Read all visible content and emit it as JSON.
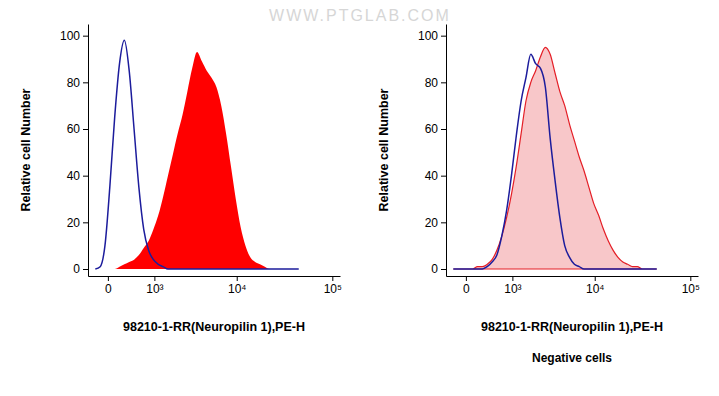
{
  "watermark": "WWW.PTGLAB.COM",
  "chart_data": [
    {
      "type": "area",
      "log": "x",
      "x_label": "98210-1-RR(Neuropilin 1),PE-H",
      "y_label": "Relative cell Number",
      "xlim": [
        -300,
        120000
      ],
      "ylim": [
        -3,
        105
      ],
      "xticks": [
        0,
        {
          "value": 1000,
          "label": "10³"
        },
        {
          "value": 10000,
          "label": "10⁴"
        },
        {
          "value": 100000,
          "label": "10⁵"
        }
      ],
      "yticks": [
        0,
        20,
        40,
        60,
        80,
        100
      ],
      "x": [
        -173,
        -100,
        -36,
        23,
        87,
        158,
        238,
        327,
        428,
        540,
        666,
        808,
        967,
        1144,
        1344,
        1567,
        1818,
        2099,
        2414,
        2768,
        3164,
        3609,
        4107,
        4666,
        5292,
        5994,
        6783,
        7666,
        8656,
        9766,
        11011,
        12405,
        13970,
        15730,
        17690,
        19900,
        22380,
        25145,
        28250,
        31740,
        35660,
        40050,
        44960
      ],
      "series": [
        {
          "type": "area",
          "color": "#ff0000",
          "values": [
            0,
            0,
            0,
            0,
            0,
            1,
            2,
            3,
            4,
            6,
            9,
            12,
            17,
            23,
            31,
            40,
            49,
            58,
            66,
            76,
            86,
            93,
            89,
            85,
            82,
            78,
            70,
            58,
            44,
            30,
            18,
            10,
            5,
            3,
            2,
            1,
            0,
            0,
            0,
            0,
            0,
            0,
            0
          ]
        },
        {
          "type": "line",
          "color": "#1c1c9c",
          "values": [
            0,
            1,
            10,
            35,
            65,
            88,
            98,
            85,
            60,
            35,
            17,
            8,
            4,
            2,
            1,
            0,
            0,
            0,
            0,
            0,
            0,
            0,
            0,
            0,
            0,
            0,
            0,
            0,
            0,
            0,
            0,
            0,
            0,
            0,
            0,
            0,
            0,
            0,
            0,
            0,
            0,
            0,
            0
          ]
        }
      ]
    },
    {
      "type": "area",
      "log": "x",
      "x_label": "98210-1-RR(Neuropilin 1),PE-H",
      "y_label": "Relative cell Number",
      "caption": "Negative cells",
      "xlim": [
        -300,
        120000
      ],
      "ylim": [
        -3,
        105
      ],
      "xticks": [
        0,
        {
          "value": 1000,
          "label": "10³"
        },
        {
          "value": 10000,
          "label": "10⁴"
        },
        {
          "value": 100000,
          "label": "10⁵"
        }
      ],
      "yticks": [
        0,
        20,
        40,
        60,
        80,
        100
      ],
      "x": [
        -173,
        -100,
        -36,
        23,
        87,
        158,
        238,
        327,
        428,
        540,
        666,
        808,
        967,
        1144,
        1344,
        1567,
        1818,
        2099,
        2414,
        2768,
        3164,
        3609,
        4107,
        4666,
        5292,
        5994,
        6783,
        7666,
        8656,
        9766,
        11011,
        12405,
        13970,
        15730,
        17690,
        19900,
        22380,
        25145,
        28250,
        31740,
        35660,
        40050,
        44960
      ],
      "series": [
        {
          "type": "area",
          "color": "#e41e26",
          "line_style": "solid",
          "values": [
            0,
            0,
            0,
            0,
            0,
            1,
            1,
            2,
            4,
            8,
            14,
            22,
            32,
            44,
            58,
            72,
            80,
            85,
            91,
            95,
            92,
            84,
            76,
            70,
            62,
            55,
            48,
            42,
            35,
            28,
            23,
            17,
            12,
            8,
            5,
            3,
            2,
            1,
            1,
            0,
            0,
            0,
            0
          ]
        },
        {
          "type": "line",
          "color": "#1c1c9c",
          "values": [
            0,
            0,
            0,
            0,
            0,
            0,
            0,
            1,
            3,
            6,
            14,
            25,
            40,
            57,
            72,
            82,
            92,
            88,
            86,
            78,
            56,
            38,
            22,
            10,
            5,
            2,
            1,
            0,
            0,
            0,
            0,
            0,
            0,
            0,
            0,
            0,
            0,
            0,
            0,
            0,
            0,
            0,
            0
          ]
        }
      ]
    }
  ]
}
